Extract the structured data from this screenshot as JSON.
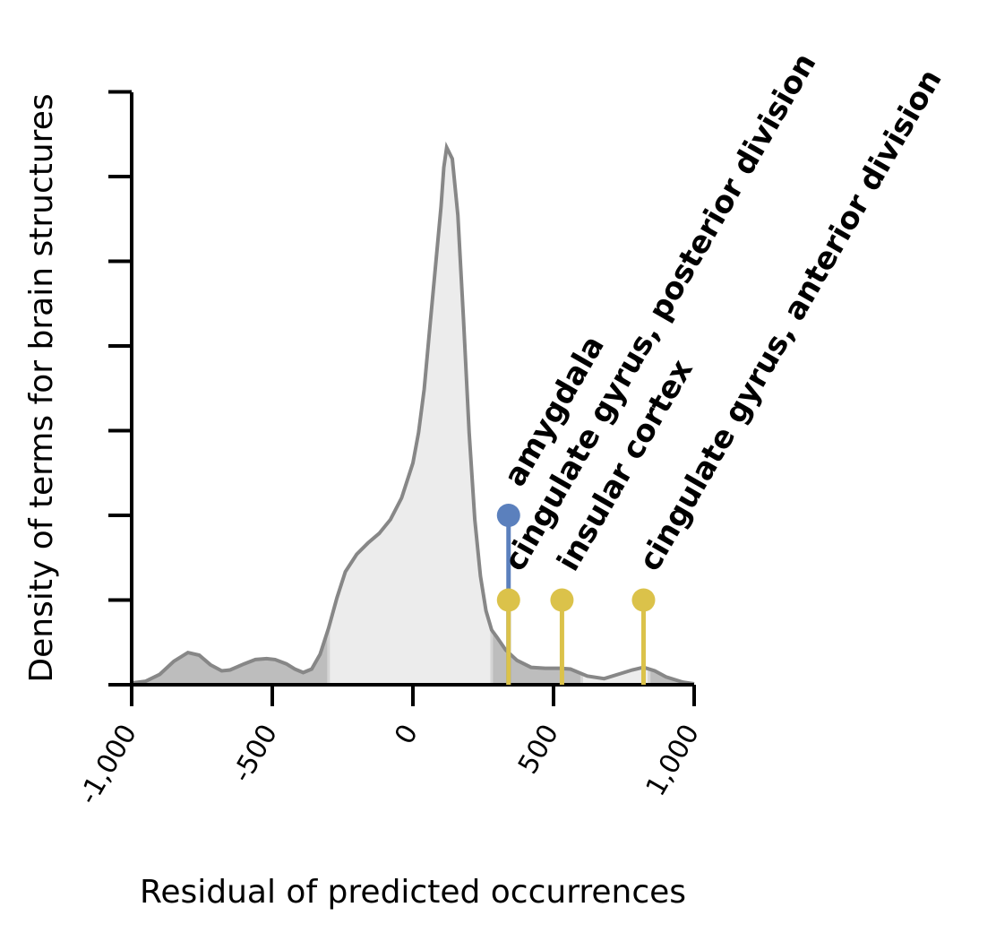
{
  "chart_data": {
    "type": "area",
    "xlabel": "Residual of predicted occurrences",
    "ylabel": "Density of terms for brain structures",
    "xlim": [
      -1000,
      1000
    ],
    "x_ticks": [
      -1000,
      -500,
      0,
      500,
      1000
    ],
    "x_tick_labels": [
      "-1,000",
      "-500",
      "0",
      "500",
      "1,000"
    ],
    "y_tick_count": 7,
    "grid": false,
    "density_curve": {
      "x": [
        -1000,
        -950,
        -900,
        -850,
        -800,
        -760,
        -720,
        -680,
        -650,
        -600,
        -560,
        -520,
        -490,
        -450,
        -420,
        -390,
        -360,
        -330,
        -300,
        -270,
        -240,
        -200,
        -160,
        -120,
        -80,
        -40,
        0,
        20,
        40,
        60,
        80,
        100,
        110,
        120,
        140,
        160,
        180,
        200,
        220,
        240,
        260,
        280,
        300,
        330,
        370,
        420,
        470,
        520,
        560,
        620,
        680,
        740,
        780,
        820,
        860,
        900,
        960,
        1000
      ],
      "y": [
        0.2,
        0.4,
        1.2,
        2.7,
        3.7,
        3.4,
        2.3,
        1.6,
        1.7,
        2.4,
        2.9,
        3.0,
        2.9,
        2.4,
        1.8,
        1.4,
        1.8,
        3.5,
        6.5,
        10.0,
        13.0,
        15.0,
        16.3,
        17.4,
        19.0,
        21.5,
        25.5,
        29.0,
        34.0,
        41.0,
        48.0,
        55.0,
        59.5,
        61.8,
        60.5,
        54.0,
        42.0,
        29.0,
        19.0,
        12.5,
        8.5,
        6.3,
        5.4,
        4.0,
        2.8,
        2.0,
        1.9,
        1.9,
        1.8,
        1.0,
        0.7,
        1.3,
        1.7,
        2.0,
        1.6,
        0.9,
        0.3,
        0.1
      ]
    },
    "shading": {
      "dark_color": "#bdbdbd",
      "light_color": "#ececec",
      "line_color": "#878787",
      "light_ranges": [
        [
          -300,
          280
        ],
        [
          600,
          840
        ]
      ],
      "dark_ranges": [
        [
          -1000,
          -300
        ],
        [
          280,
          600
        ],
        [
          840,
          1000
        ]
      ]
    },
    "annotations": [
      {
        "label": "amygdala",
        "x": 340,
        "level": 2,
        "color": "#5b80bd"
      },
      {
        "label": "cingulate gyrus, posterior division",
        "x": 340,
        "level": 1,
        "color": "#dbc24a"
      },
      {
        "label": "insular cortex",
        "x": 530,
        "level": 1,
        "color": "#dbc24a"
      },
      {
        "label": "cingulate gyrus, anterior division",
        "x": 820,
        "level": 1,
        "color": "#dbc24a"
      }
    ]
  }
}
